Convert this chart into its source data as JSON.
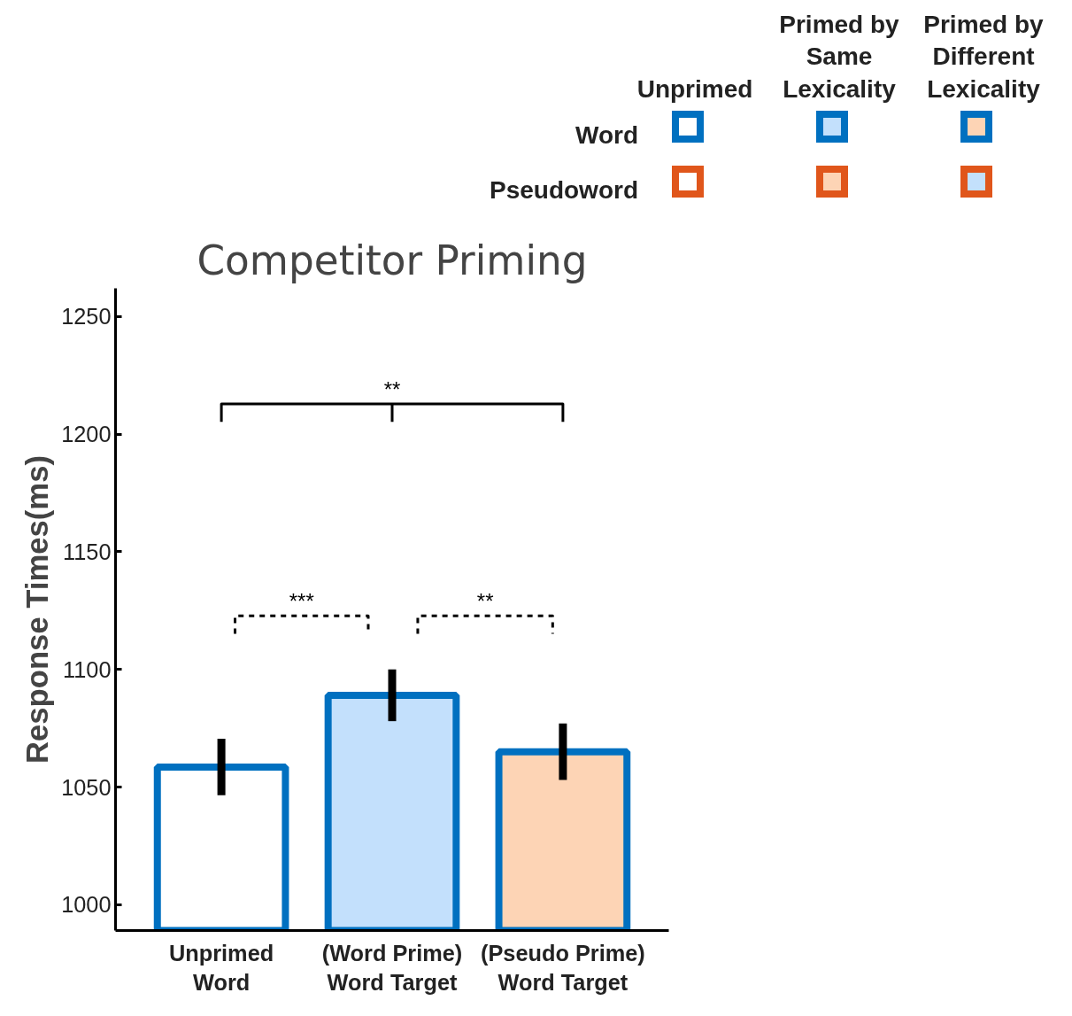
{
  "chart_data": {
    "type": "bar",
    "title": "Competitor Priming",
    "ylabel": "Response Times(ms)",
    "categories": [
      "Unprimed\nWord",
      "(Word Prime)\nWord Target",
      "(Pseudo Prime)\nWord Target"
    ],
    "values": [
      1058.5,
      1089,
      1065
    ],
    "errors": [
      12,
      11,
      12
    ],
    "colors": [
      "#ffffff",
      "#c3e0fc",
      "#fdd4b5"
    ],
    "ylim": [
      989,
      1262
    ],
    "yticks": [
      1000,
      1050,
      1100,
      1150,
      1200,
      1250
    ],
    "annotations": [
      "**",
      "***",
      "**",
      "Unprimed",
      "Primed by\nSame\nLexicality",
      "Primed by\nDifferent\nLexicality",
      "Word",
      "Pseudoword"
    ],
    "grid": false
  }
}
